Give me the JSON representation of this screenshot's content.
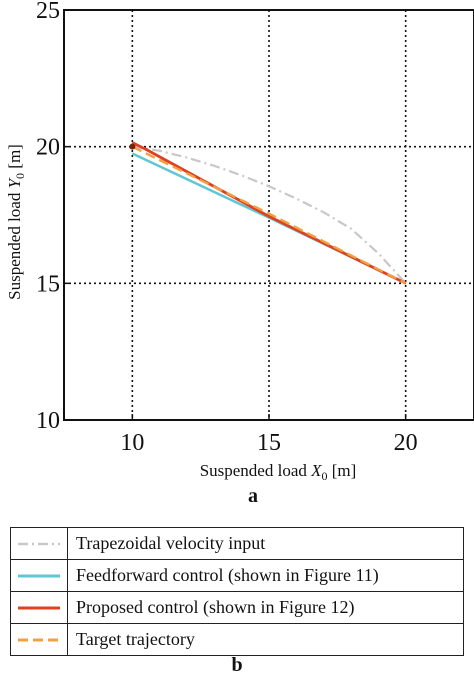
{
  "chart_data": {
    "type": "line",
    "panel": "a",
    "xlabel_prefix": "Suspended load ",
    "xlabel_var": "X",
    "xlabel_sub": "0",
    "xlabel_unit": " [m]",
    "ylabel_prefix": "Suspended load ",
    "ylabel_var": "Y",
    "ylabel_sub": "0",
    "ylabel_unit": " [m]",
    "xlim": [
      7.5,
      22.5
    ],
    "ylim": [
      10,
      25
    ],
    "xticks": [
      10,
      15,
      20
    ],
    "yticks": [
      10,
      15,
      20,
      25
    ],
    "grid": true,
    "series": [
      {
        "name": "Trapezoidal velocity input",
        "color": "#c8c8c8",
        "style": "dash-dot",
        "points": [
          [
            10,
            20
          ],
          [
            11,
            19.85
          ],
          [
            12,
            19.6
          ],
          [
            13,
            19.3
          ],
          [
            14,
            18.95
          ],
          [
            15,
            18.55
          ],
          [
            16,
            18.1
          ],
          [
            17,
            17.6
          ],
          [
            18,
            17
          ],
          [
            19,
            16.1
          ],
          [
            20,
            15
          ]
        ]
      },
      {
        "name": "Feedforward control (shown in Figure 11)",
        "color": "#5fc6d6",
        "style": "solid",
        "points": [
          [
            10,
            19.75
          ],
          [
            15,
            17.4
          ],
          [
            20,
            15
          ]
        ]
      },
      {
        "name": "Proposed control (shown in Figure 12)",
        "color": "#e04020",
        "style": "solid",
        "points": [
          [
            10,
            20.15
          ],
          [
            10.5,
            19.9
          ],
          [
            15,
            17.45
          ],
          [
            20,
            15
          ]
        ]
      },
      {
        "name": "Target trajectory",
        "color": "#f2a040",
        "style": "dashed",
        "points": [
          [
            10,
            20
          ],
          [
            15,
            17.55
          ],
          [
            20,
            15
          ]
        ]
      }
    ]
  },
  "panel_b_label": "b"
}
